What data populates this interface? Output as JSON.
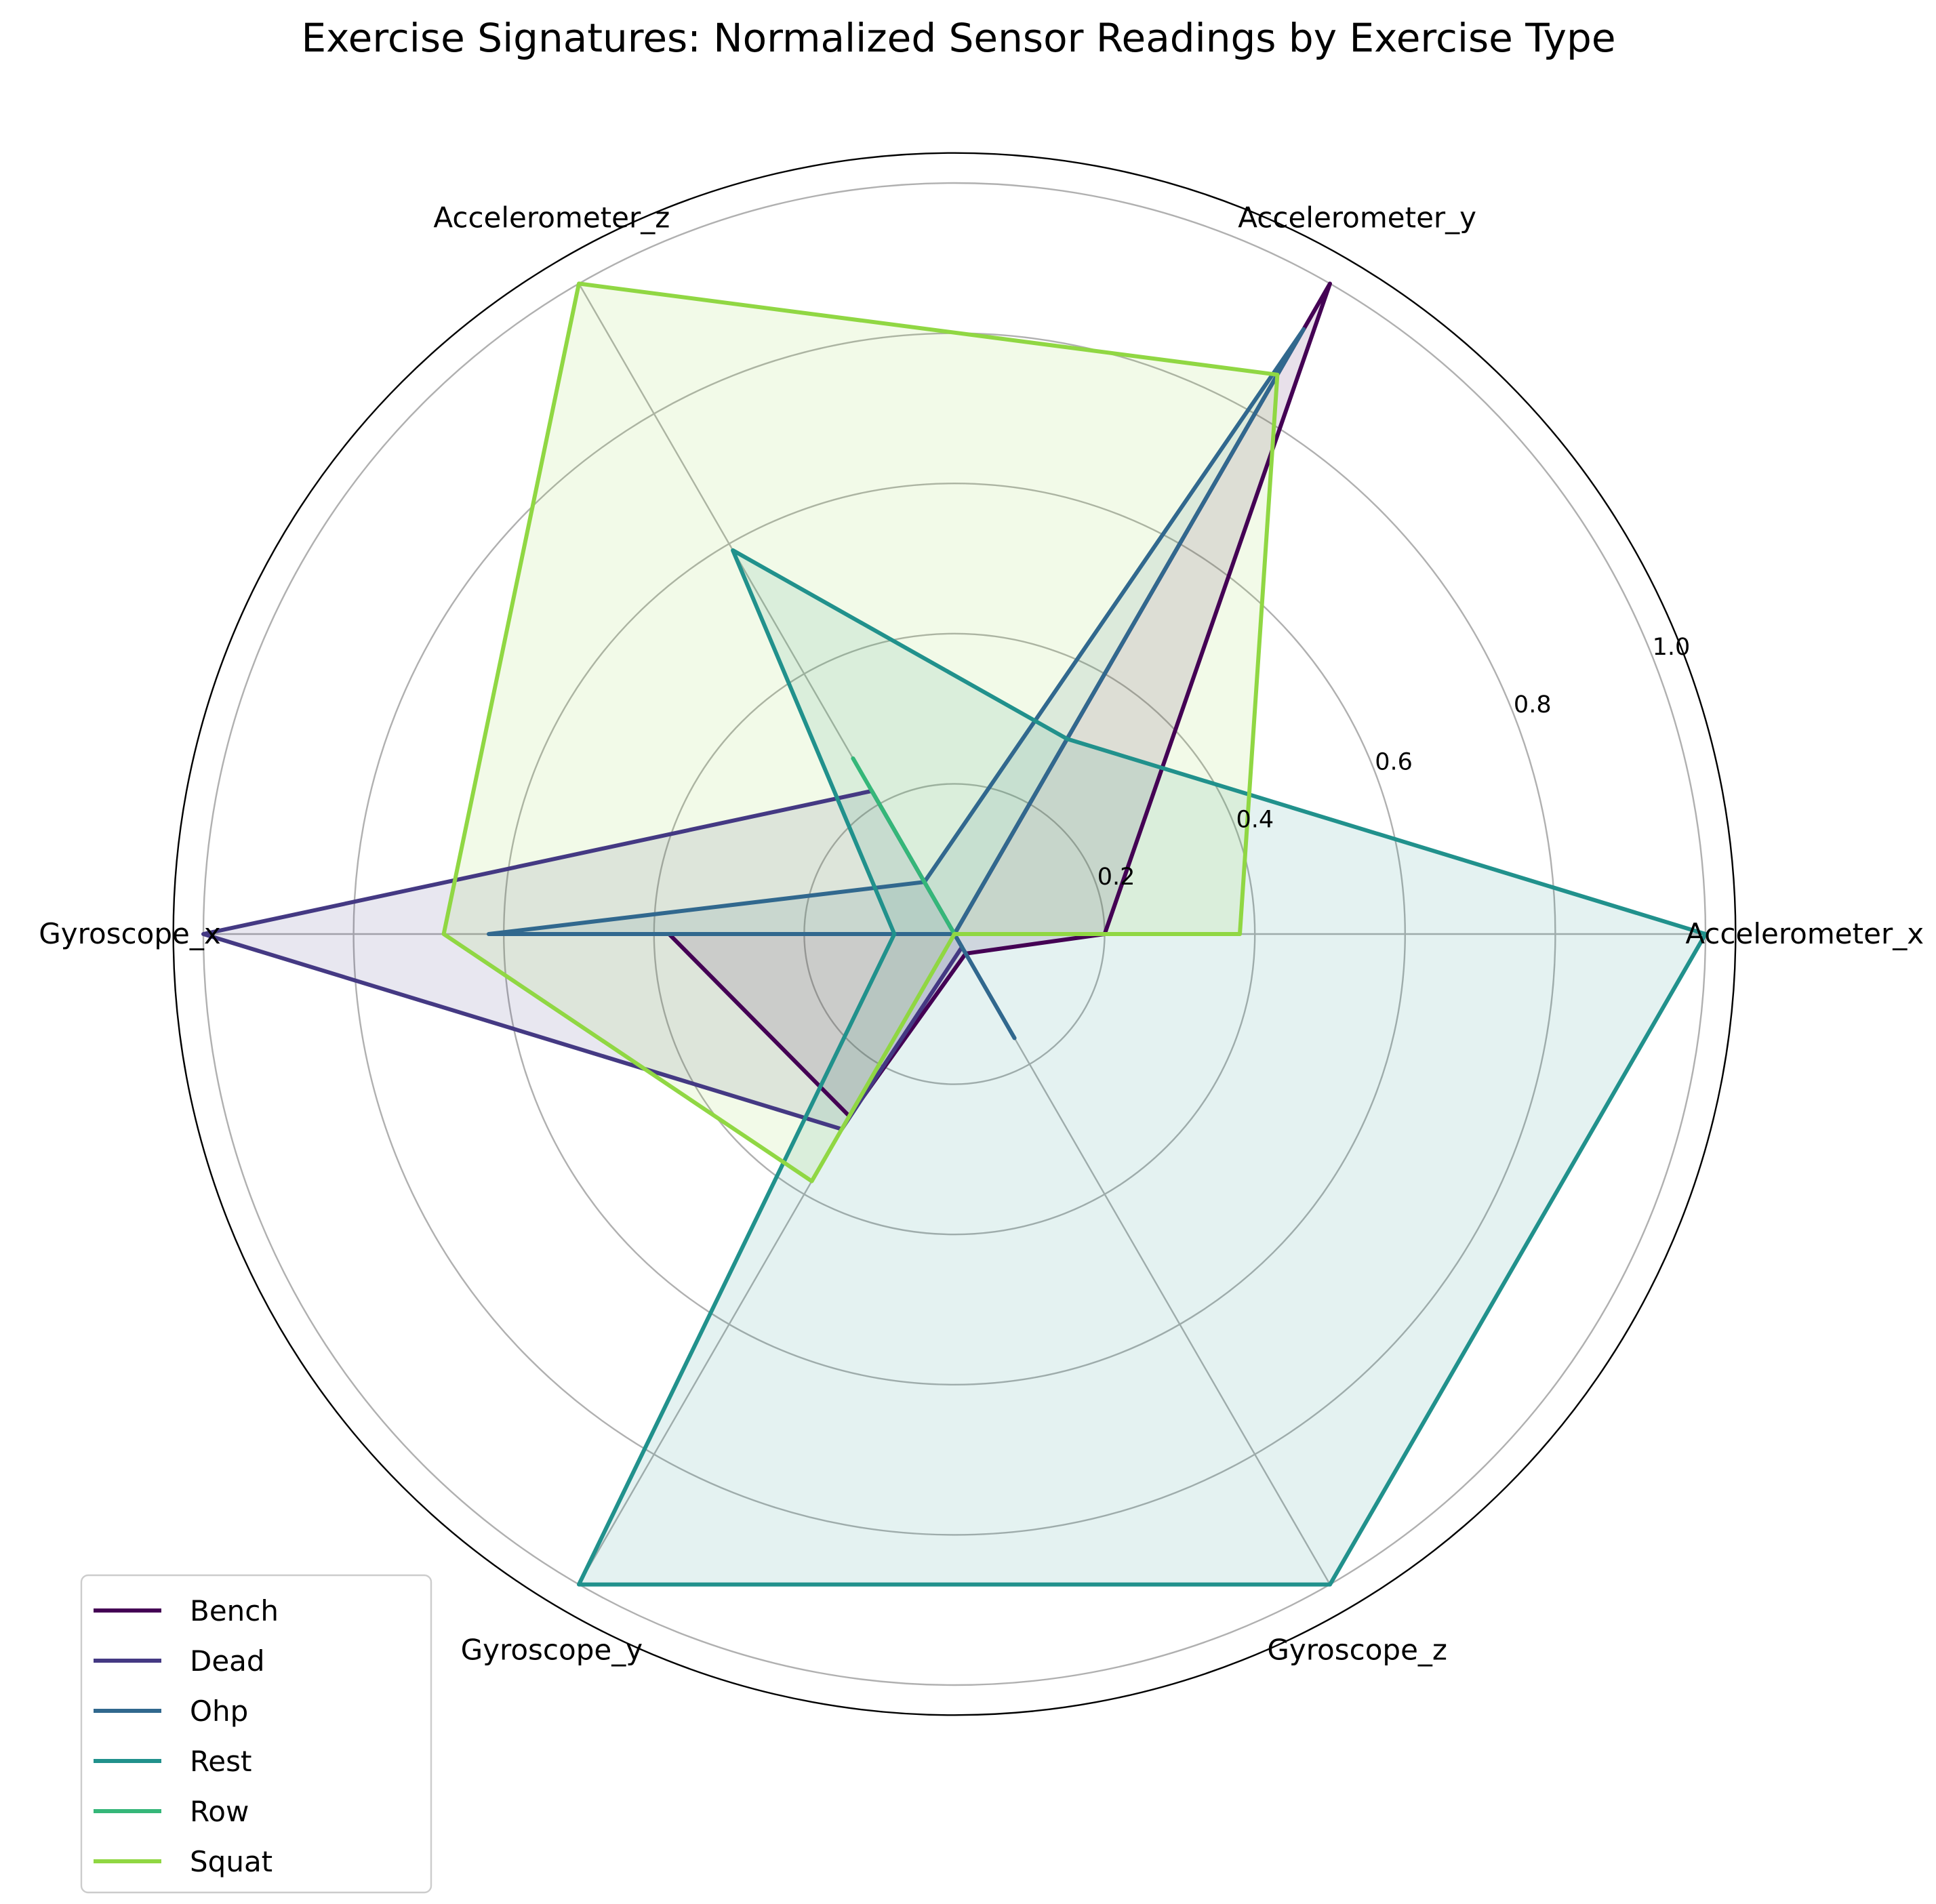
{
  "chart_data": {
    "type": "radar",
    "title": "Exercise Signatures: Normalized Sensor Readings by Exercise Type",
    "axes": [
      "Accelerometer_x",
      "Accelerometer_y",
      "Accelerometer_z",
      "Gyroscope_x",
      "Gyroscope_y",
      "Gyroscope_z"
    ],
    "rlim": [
      0,
      1.0
    ],
    "rticks": [
      0.2,
      0.4,
      0.6,
      0.8,
      1.0
    ],
    "rtick_labels": [
      "0.2",
      "0.4",
      "0.6",
      "0.8",
      "1.0"
    ],
    "grid": true,
    "legend_position": "lower-left",
    "series": [
      {
        "name": "Bench",
        "color": "#440154",
        "values": [
          0.2,
          1.0,
          0.0,
          0.38,
          0.28,
          0.03
        ]
      },
      {
        "name": "Dead",
        "color": "#443983",
        "values": [
          0.0,
          0.0,
          0.22,
          1.0,
          0.3,
          0.02
        ]
      },
      {
        "name": "Ohp",
        "color": "#31688e",
        "values": [
          0.0,
          0.93,
          0.08,
          0.62,
          0.0,
          0.16
        ]
      },
      {
        "name": "Rest",
        "color": "#21918c",
        "values": [
          1.0,
          0.3,
          0.59,
          0.08,
          1.0,
          1.0
        ]
      },
      {
        "name": "Row",
        "color": "#35b779",
        "values": [
          0.0,
          0.0,
          0.27,
          0.0,
          0.0,
          0.0
        ]
      },
      {
        "name": "Squat",
        "color": "#90d743",
        "values": [
          0.38,
          0.86,
          1.0,
          0.68,
          0.38,
          0.0
        ]
      }
    ]
  }
}
